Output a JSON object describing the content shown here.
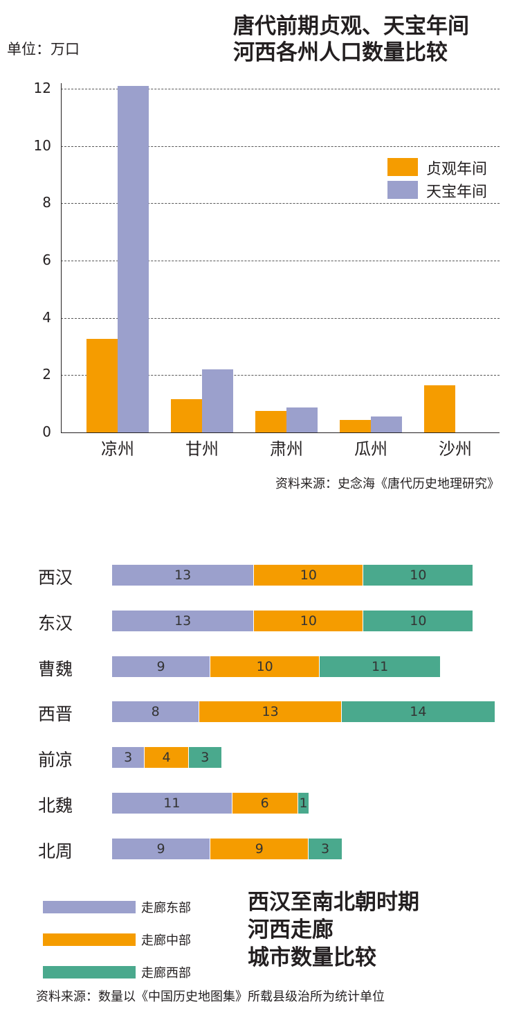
{
  "colors": {
    "orange": "#f59c00",
    "lavender": "#9ba0cc",
    "teal": "#4aa98d"
  },
  "chart_data": [
    {
      "type": "bar",
      "title": "唐代前期贞观、天宝年间河西各州人口数量比较",
      "title_lines": [
        "唐代前期贞观、天宝年间",
        "河西各州人口数量比较"
      ],
      "unit": "单位：万口",
      "categories": [
        "凉州",
        "甘州",
        "肃州",
        "瓜州",
        "沙州"
      ],
      "series": [
        {
          "name": "贞观年间",
          "color": "#f59c00",
          "values": [
            3.27,
            1.15,
            0.76,
            0.43,
            1.64
          ]
        },
        {
          "name": "天宝年间",
          "color": "#9ba0cc",
          "values": [
            12.09,
            2.2,
            0.86,
            0.55,
            null
          ]
        }
      ],
      "yticks": [
        "0",
        "2",
        "4",
        "6",
        "8",
        "10",
        "12"
      ],
      "ylim": [
        0,
        12
      ],
      "grid": true,
      "legend_position": "top-right",
      "source": "资料来源：史念海《唐代历史地理研究》"
    },
    {
      "type": "bar",
      "orientation": "horizontal",
      "stacked": true,
      "title": "西汉至南北朝时期河西走廊城市数量比较",
      "title_lines": [
        "西汉至南北朝时期",
        "河西走廊",
        "城市数量比较"
      ],
      "categories": [
        "西汉",
        "东汉",
        "曹魏",
        "西晋",
        "前凉",
        "北魏",
        "北周"
      ],
      "series": [
        {
          "name": "走廊东部",
          "color": "#9ba0cc",
          "values": [
            13,
            13,
            9,
            8,
            3,
            11,
            9
          ]
        },
        {
          "name": "走廊中部",
          "color": "#f59c00",
          "values": [
            10,
            10,
            10,
            13,
            4,
            6,
            9
          ]
        },
        {
          "name": "走廊西部",
          "color": "#4aa98d",
          "values": [
            10,
            10,
            11,
            14,
            3,
            1,
            3
          ]
        }
      ],
      "legend_position": "bottom-left",
      "source": "资料来源：数量以《中国历史地图集》所载县级治所为统计单位"
    }
  ]
}
